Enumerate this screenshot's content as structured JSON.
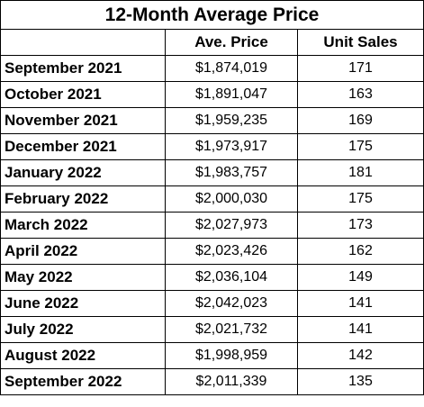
{
  "table": {
    "title": "12-Month Average Price",
    "headers": [
      "",
      "Ave. Price",
      "Unit Sales"
    ],
    "rows": [
      {
        "month": "September 2021",
        "price": "$1,874,019",
        "sales": "171"
      },
      {
        "month": "October 2021",
        "price": "$1,891,047",
        "sales": "163"
      },
      {
        "month": "November 2021",
        "price": "$1,959,235",
        "sales": "169"
      },
      {
        "month": "December 2021",
        "price": "$1,973,917",
        "sales": "175"
      },
      {
        "month": "January 2022",
        "price": "$1,983,757",
        "sales": "181"
      },
      {
        "month": "February 2022",
        "price": "$2,000,030",
        "sales": "175"
      },
      {
        "month": "March 2022",
        "price": "$2,027,973",
        "sales": "173"
      },
      {
        "month": "April 2022",
        "price": "$2,023,426",
        "sales": "162"
      },
      {
        "month": "May 2022",
        "price": "$2,036,104",
        "sales": "149"
      },
      {
        "month": "June 2022",
        "price": "$2,042,023",
        "sales": "141"
      },
      {
        "month": "July 2022",
        "price": "$2,021,732",
        "sales": "141"
      },
      {
        "month": "August 2022",
        "price": "$1,998,959",
        "sales": "142"
      },
      {
        "month": "September 2022",
        "price": "$2,011,339",
        "sales": "135"
      }
    ]
  }
}
